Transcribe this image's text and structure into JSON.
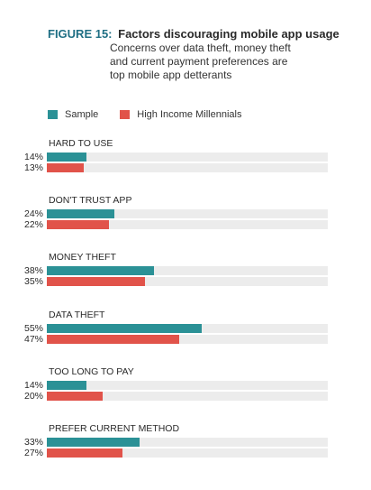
{
  "header": {
    "figure_label": "FIGURE 15:",
    "title": "Factors discouraging mobile app usage",
    "subtitle_lines": [
      "Concerns over data theft, money theft",
      "and current payment preferences are",
      "top mobile app detterants"
    ]
  },
  "colors": {
    "sample": "#2b9196",
    "high_income_millennials": "#e1534a",
    "track": "#ececec"
  },
  "chart_data": {
    "type": "bar",
    "orientation": "horizontal",
    "title": "Factors discouraging mobile app usage",
    "categories": [
      "HARD TO USE",
      "DON'T TRUST APP",
      "MONEY THEFT",
      "DATA THEFT",
      "TOO LONG TO PAY",
      "PREFER CURRENT METHOD"
    ],
    "series": [
      {
        "name": "Sample",
        "values": [
          14,
          24,
          38,
          55,
          14,
          33
        ],
        "labels": [
          "14%",
          "24%",
          "38%",
          "55%",
          "14%",
          "33%"
        ]
      },
      {
        "name": "High Income Millennials",
        "values": [
          13,
          22,
          35,
          47,
          20,
          27
        ],
        "labels": [
          "13%",
          "22%",
          "35%",
          "47%",
          "20%",
          "27%"
        ]
      }
    ],
    "xlim": [
      0,
      100
    ],
    "legend_position": "top-left",
    "grid": false
  }
}
